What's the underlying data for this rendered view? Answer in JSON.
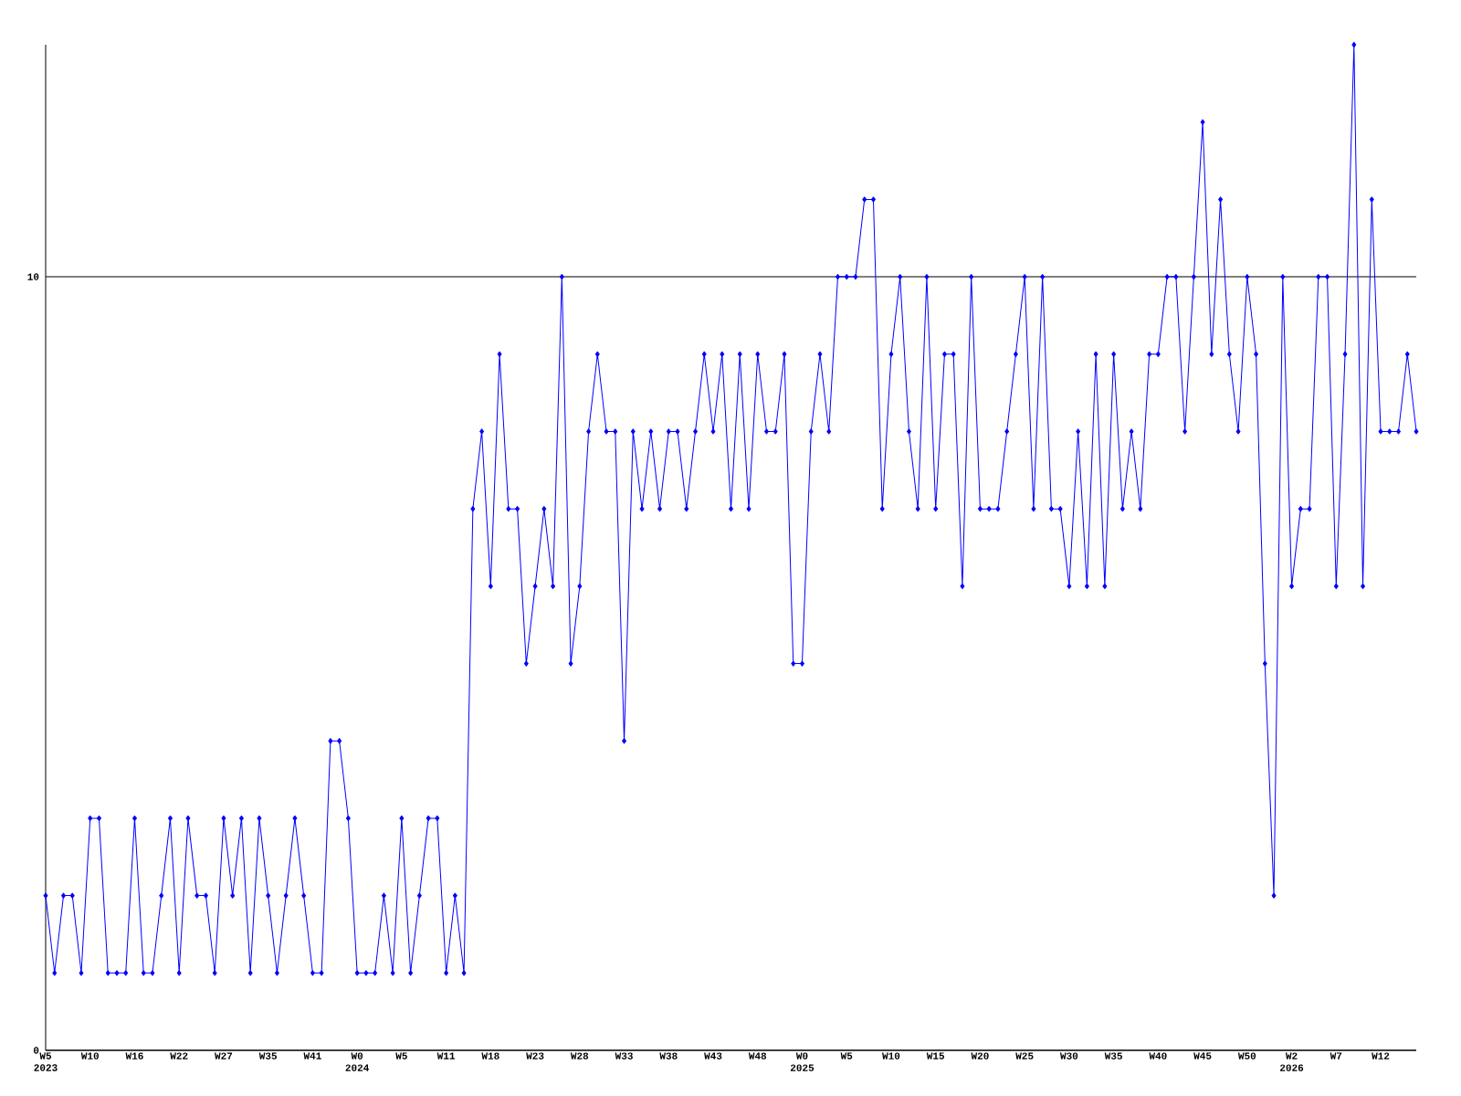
{
  "chart_data": {
    "type": "line",
    "categories": [
      "W5 2023",
      null,
      null,
      null,
      null,
      "W10",
      null,
      null,
      null,
      null,
      "W16",
      null,
      null,
      null,
      null,
      "W22",
      null,
      null,
      null,
      null,
      "W27",
      null,
      null,
      null,
      null,
      "W35",
      null,
      null,
      null,
      null,
      "W41",
      null,
      null,
      null,
      null,
      "W0 2024",
      null,
      null,
      null,
      null,
      "W5",
      null,
      null,
      null,
      null,
      "W11",
      null,
      null,
      null,
      null,
      "W18",
      null,
      null,
      null,
      null,
      "W23",
      null,
      null,
      null,
      null,
      "W28",
      null,
      null,
      null,
      null,
      "W33",
      null,
      null,
      null,
      null,
      "W38",
      null,
      null,
      null,
      null,
      "W43",
      null,
      null,
      null,
      null,
      "W48",
      null,
      null,
      null,
      null,
      "W0 2025",
      null,
      null,
      null,
      null,
      "W5",
      null,
      null,
      null,
      null,
      "W10",
      null,
      null,
      null,
      null,
      "W15",
      null,
      null,
      null,
      null,
      "W20",
      null,
      null,
      null,
      null,
      "W25",
      null,
      null,
      null,
      null,
      "W30",
      null,
      null,
      null,
      null,
      "W35",
      null,
      null,
      null,
      null,
      "W40",
      null,
      null,
      null,
      null,
      "W45",
      null,
      null,
      null,
      null,
      "W50",
      null,
      null,
      null,
      null,
      "W2 2026",
      null,
      null,
      null,
      null,
      "W7",
      null,
      null,
      null,
      null,
      "W12",
      null,
      null,
      null,
      null
    ],
    "values": [
      2,
      1,
      2,
      2,
      1,
      3,
      3,
      1,
      1,
      1,
      3,
      1,
      1,
      2,
      3,
      1,
      3,
      2,
      2,
      1,
      3,
      2,
      3,
      1,
      3,
      2,
      1,
      2,
      3,
      2,
      1,
      1,
      4,
      4,
      3,
      1,
      1,
      1,
      2,
      1,
      3,
      1,
      2,
      3,
      3,
      1,
      2,
      1,
      7,
      8,
      6,
      9,
      7,
      7,
      5,
      6,
      7,
      6,
      10,
      5,
      6,
      8,
      9,
      8,
      8,
      4,
      8,
      7,
      8,
      7,
      8,
      8,
      7,
      8,
      9,
      8,
      9,
      7,
      9,
      7,
      9,
      8,
      8,
      9,
      5,
      5,
      8,
      9,
      8,
      10,
      10,
      10,
      11,
      11,
      7,
      9,
      10,
      8,
      7,
      10,
      7,
      9,
      9,
      6,
      10,
      7,
      7,
      7,
      8,
      9,
      10,
      7,
      10,
      7,
      7,
      6,
      8,
      6,
      9,
      6,
      9,
      7,
      8,
      7,
      9,
      9,
      10,
      10,
      8,
      10,
      12,
      9,
      11,
      9,
      8,
      10,
      9,
      5,
      2,
      10,
      6,
      7,
      7,
      10,
      10,
      6,
      9,
      13,
      6,
      11,
      8,
      8,
      8,
      9,
      8
    ],
    "color": "#0000ff",
    "ylim": [
      0,
      13
    ],
    "yticks": [
      0,
      10
    ],
    "grid": "y",
    "marker": "diamond",
    "line_style": "solid"
  }
}
